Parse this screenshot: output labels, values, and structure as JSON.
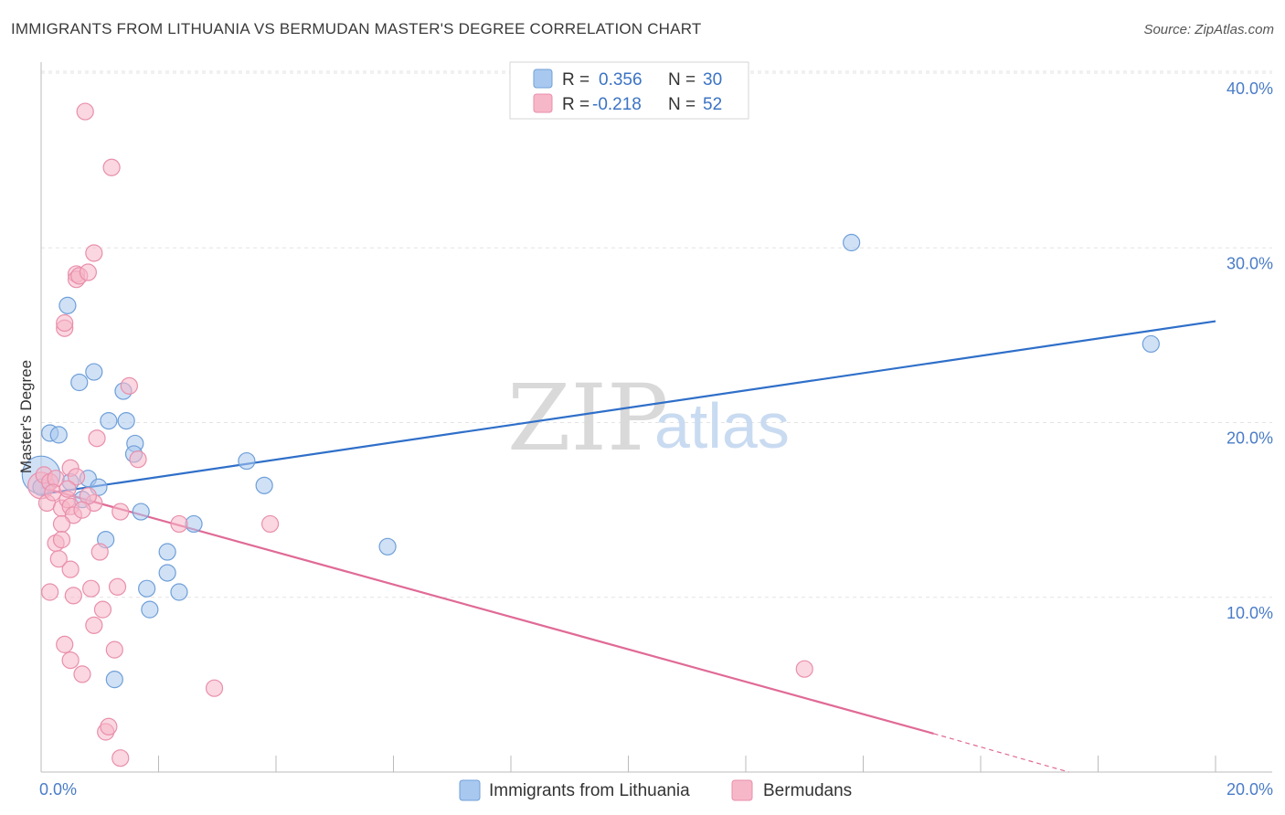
{
  "header": {
    "title": "IMMIGRANTS FROM LITHUANIA VS BERMUDAN MASTER'S DEGREE CORRELATION CHART",
    "source": "Source: ZipAtlas.com"
  },
  "watermark": {
    "zip": "ZIP",
    "atlas": "atlas"
  },
  "colors": {
    "blue_fill": "#a9c8ef",
    "blue_stroke": "#6f9fd8",
    "blue_line": "#2f6fc9",
    "pink_fill": "#f6b7c9",
    "pink_stroke": "#e98fab",
    "pink_line": "#e06a96",
    "grid": "#e3e3e3",
    "tick_text": "#4a7cc7"
  },
  "chart_data": {
    "type": "scatter",
    "title": "IMMIGRANTS FROM LITHUANIA VS BERMUDAN MASTER'S DEGREE CORRELATION CHART",
    "xlabel": "",
    "ylabel": "Master's Degree",
    "xlim": [
      0,
      20
    ],
    "ylim": [
      0,
      40
    ],
    "x_tick_labels": [
      "0.0%",
      "20.0%"
    ],
    "y_ticks": [
      10,
      20,
      30,
      40
    ],
    "y_tick_labels": [
      "10.0%",
      "20.0%",
      "30.0%",
      "40.0%"
    ],
    "legend_position": "top-center",
    "legend": [
      {
        "name": "Immigrants from Lithuania",
        "r_label": "R =",
        "r_value": "0.356",
        "n_label": "N =",
        "n_value": "30"
      },
      {
        "name": "Bermudans",
        "r_label": "R =",
        "r_value": "-0.218",
        "n_label": "N =",
        "n_value": "52"
      }
    ],
    "series": [
      {
        "name": "Immigrants from Lithuania",
        "color": "blue",
        "trend": {
          "x0": 0,
          "y0": 15.9,
          "x1": 20,
          "y1": 25.8
        },
        "points": [
          [
            0.0,
            17.0,
            2.3
          ],
          [
            0.0,
            16.3,
            1
          ],
          [
            0.15,
            19.4,
            1
          ],
          [
            0.3,
            19.3,
            1
          ],
          [
            0.45,
            26.7,
            1
          ],
          [
            0.65,
            22.3,
            1
          ],
          [
            0.9,
            22.9,
            1
          ],
          [
            0.5,
            16.6,
            1
          ],
          [
            0.8,
            16.8,
            1
          ],
          [
            0.7,
            15.6,
            1
          ],
          [
            0.98,
            16.3,
            1
          ],
          [
            1.15,
            20.1,
            1
          ],
          [
            1.4,
            21.8,
            1
          ],
          [
            1.45,
            20.1,
            1
          ],
          [
            1.6,
            18.8,
            1
          ],
          [
            1.58,
            18.2,
            1
          ],
          [
            1.7,
            14.9,
            1
          ],
          [
            1.1,
            13.3,
            1
          ],
          [
            1.8,
            10.5,
            1
          ],
          [
            1.85,
            9.3,
            1
          ],
          [
            2.15,
            12.6,
            1
          ],
          [
            2.15,
            11.4,
            1
          ],
          [
            2.35,
            10.3,
            1
          ],
          [
            2.6,
            14.2,
            1
          ],
          [
            3.5,
            17.8,
            1
          ],
          [
            3.8,
            16.4,
            1
          ],
          [
            5.9,
            12.9,
            1
          ],
          [
            13.8,
            30.3,
            1
          ],
          [
            18.9,
            24.5,
            1
          ],
          [
            1.25,
            5.3,
            1
          ]
        ]
      },
      {
        "name": "Bermudans",
        "color": "pink",
        "trend": {
          "x0": 0,
          "y0": 16.3,
          "x1": 15.2,
          "y1": 2.2,
          "dash_x1": 17.5,
          "dash_y1": 0
        },
        "points": [
          [
            0.0,
            16.4,
            1.6
          ],
          [
            0.05,
            17.0,
            1
          ],
          [
            0.15,
            16.6,
            1
          ],
          [
            0.25,
            16.8,
            1
          ],
          [
            0.1,
            15.4,
            1
          ],
          [
            0.35,
            15.1,
            1
          ],
          [
            0.45,
            15.6,
            1
          ],
          [
            0.5,
            15.2,
            1
          ],
          [
            0.55,
            14.7,
            1
          ],
          [
            0.35,
            14.2,
            1
          ],
          [
            0.25,
            13.1,
            1
          ],
          [
            0.3,
            12.2,
            1
          ],
          [
            0.35,
            13.3,
            1
          ],
          [
            0.5,
            11.6,
            1
          ],
          [
            0.55,
            10.1,
            1
          ],
          [
            0.15,
            10.3,
            1
          ],
          [
            0.4,
            7.3,
            1
          ],
          [
            0.5,
            6.4,
            1
          ],
          [
            0.7,
            5.6,
            1
          ],
          [
            0.9,
            8.4,
            1
          ],
          [
            0.85,
            10.5,
            1
          ],
          [
            1.05,
            9.3,
            1
          ],
          [
            1.0,
            12.6,
            1
          ],
          [
            1.25,
            7.0,
            1
          ],
          [
            1.3,
            10.6,
            1
          ],
          [
            1.35,
            14.9,
            1
          ],
          [
            1.1,
            2.3,
            1
          ],
          [
            1.15,
            2.6,
            1
          ],
          [
            1.35,
            0.8,
            1
          ],
          [
            0.4,
            25.4,
            1
          ],
          [
            0.4,
            25.7,
            1
          ],
          [
            0.6,
            28.5,
            1
          ],
          [
            0.6,
            28.2,
            1
          ],
          [
            0.65,
            28.4,
            1
          ],
          [
            0.8,
            28.6,
            1
          ],
          [
            0.9,
            29.7,
            1
          ],
          [
            0.75,
            37.8,
            1
          ],
          [
            1.2,
            34.6,
            1
          ],
          [
            0.95,
            19.1,
            1
          ],
          [
            1.5,
            22.1,
            1
          ],
          [
            1.65,
            17.9,
            1
          ],
          [
            0.9,
            15.4,
            1
          ],
          [
            0.8,
            15.8,
            1
          ],
          [
            0.5,
            17.4,
            1
          ],
          [
            2.35,
            14.2,
            1
          ],
          [
            3.9,
            14.2,
            1
          ],
          [
            2.95,
            4.8,
            1
          ],
          [
            13.0,
            5.9,
            1
          ],
          [
            0.2,
            16.0,
            1
          ],
          [
            0.6,
            16.9,
            1
          ],
          [
            0.45,
            16.2,
            1
          ],
          [
            0.7,
            15.0,
            1
          ]
        ]
      }
    ]
  }
}
